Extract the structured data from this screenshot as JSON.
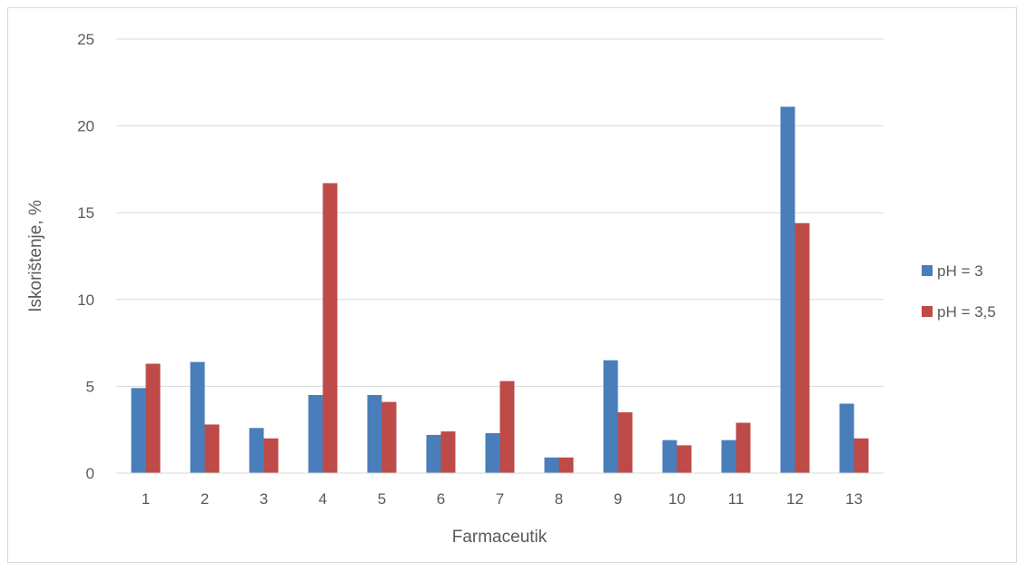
{
  "chart_data": {
    "type": "bar",
    "title": "",
    "xlabel": "Farmaceutik",
    "ylabel": "Iskorištenje, %",
    "categories": [
      "1",
      "2",
      "3",
      "4",
      "5",
      "6",
      "7",
      "8",
      "9",
      "10",
      "11",
      "12",
      "13"
    ],
    "series": [
      {
        "name": "pH = 3",
        "color": "#4a7ebb",
        "values": [
          4.9,
          6.4,
          2.6,
          4.5,
          4.5,
          2.2,
          2.3,
          0.9,
          6.5,
          1.9,
          1.9,
          21.1,
          4.0
        ]
      },
      {
        "name": "pH = 3,5",
        "color": "#be4b48",
        "values": [
          6.3,
          2.8,
          2.0,
          16.7,
          4.1,
          2.4,
          5.3,
          0.9,
          3.5,
          1.6,
          2.9,
          14.4,
          2.0
        ]
      }
    ],
    "ylim": [
      0,
      25
    ],
    "yticks": [
      0,
      5,
      10,
      15,
      20,
      25
    ],
    "grid": true,
    "legend_position": "right"
  }
}
